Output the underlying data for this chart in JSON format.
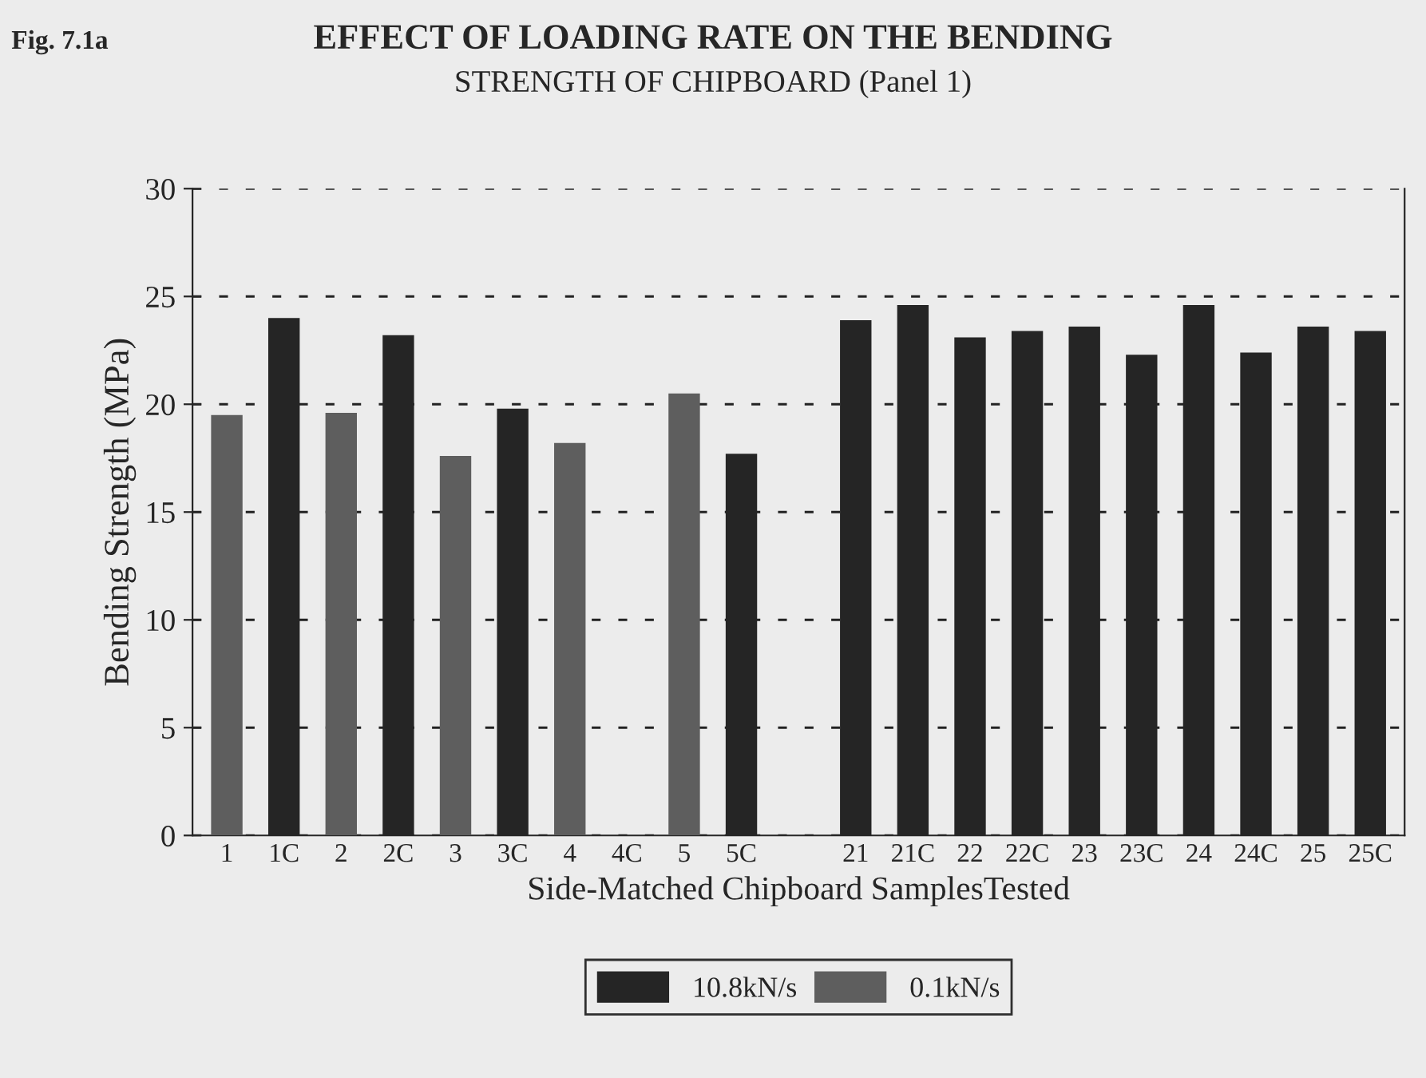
{
  "chart_data": {
    "type": "bar",
    "title": "EFFECT OF LOADING RATE ON THE BENDING",
    "subtitle": "STRENGTH OF CHIPBOARD (Panel 1)",
    "xlabel": "Side-Matched Chipboard SamplesTested",
    "ylabel": "Bending Strength (MPa)",
    "annotations": [
      "Fig. 7.1a"
    ],
    "categories": [
      "1",
      "1C",
      "2",
      "2C",
      "3",
      "3C",
      "4",
      "4C",
      "5",
      "5C",
      null,
      "21",
      "21C",
      "22",
      "22C",
      "23",
      "23C",
      "24",
      "24C",
      "25",
      "25C"
    ],
    "series": [
      {
        "name": "10.8kN/s",
        "color": "#252525",
        "values": [
          null,
          24.0,
          null,
          23.2,
          null,
          19.8,
          null,
          null,
          null,
          17.7,
          null,
          23.9,
          24.6,
          23.1,
          23.4,
          23.6,
          22.3,
          24.6,
          22.4,
          23.6,
          23.4
        ]
      },
      {
        "name": "0.1kN/s",
        "color": "#5e5e5e",
        "values": [
          19.5,
          null,
          19.6,
          null,
          17.6,
          null,
          18.2,
          null,
          20.5,
          null,
          null,
          null,
          null,
          null,
          null,
          null,
          null,
          null,
          null,
          null,
          null
        ]
      }
    ],
    "ylim": [
      0,
      30
    ],
    "yticks": [
      0,
      5,
      10,
      15,
      20,
      25,
      30
    ],
    "grid": "y",
    "legend": "bottom"
  }
}
